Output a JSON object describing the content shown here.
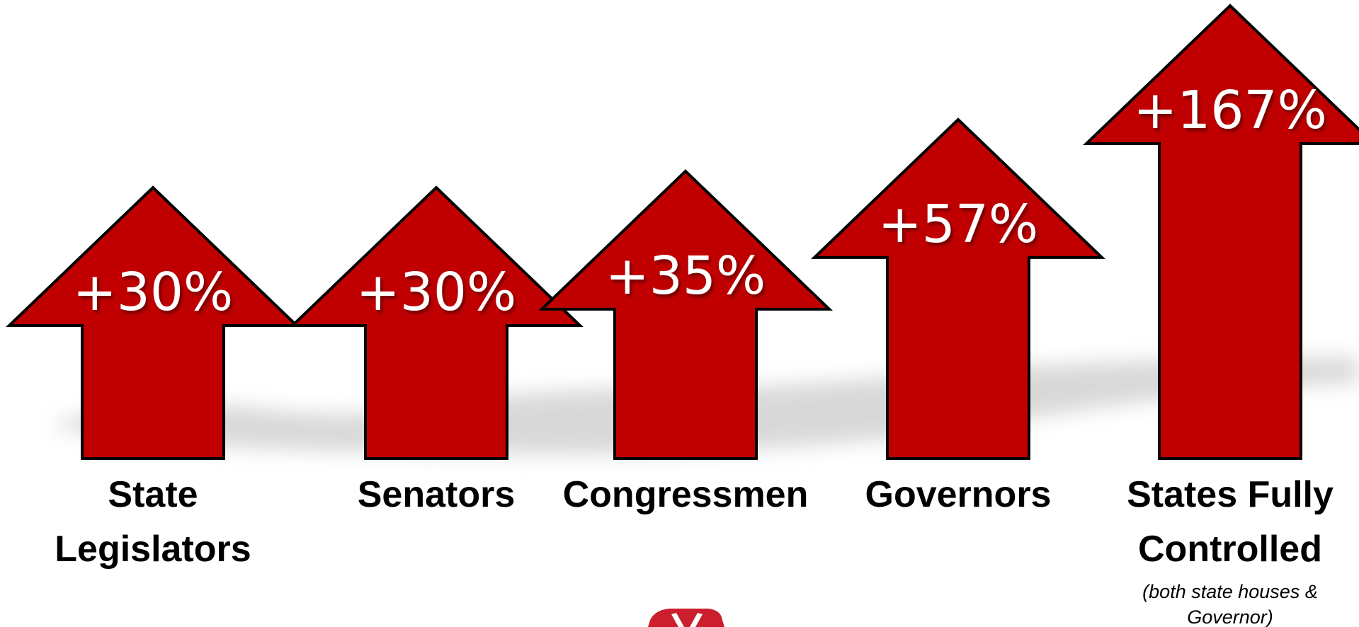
{
  "colors": {
    "arrow_fill": "#c00000",
    "arrow_stroke": "#000000",
    "value_text": "#ffffff",
    "label_text": "#000000",
    "shadow": "#d0d0d0",
    "logo": "#cc1f2d"
  },
  "icons": {
    "footer_logo": "partial-elephant-logo"
  },
  "chart_data": {
    "type": "bar",
    "style": "arrows",
    "categories": [
      "State Legislators",
      "Senators",
      "Congressmen",
      "Governors",
      "States Fully Controlled"
    ],
    "values": [
      30,
      30,
      35,
      57,
      167
    ],
    "value_labels": [
      "+30%",
      "+30%",
      "+35%",
      "+57%",
      "+167%"
    ],
    "category_lines": [
      [
        "State",
        "Legislators"
      ],
      [
        "Senators"
      ],
      [
        "Congressmen"
      ],
      [
        "Governors"
      ],
      [
        "States Fully",
        "Controlled"
      ]
    ],
    "notes": [
      null,
      null,
      null,
      null,
      [
        "(both state houses &",
        "Governor)"
      ]
    ],
    "title": "",
    "xlabel": "",
    "ylabel": "",
    "legend": "none",
    "grid": false
  }
}
